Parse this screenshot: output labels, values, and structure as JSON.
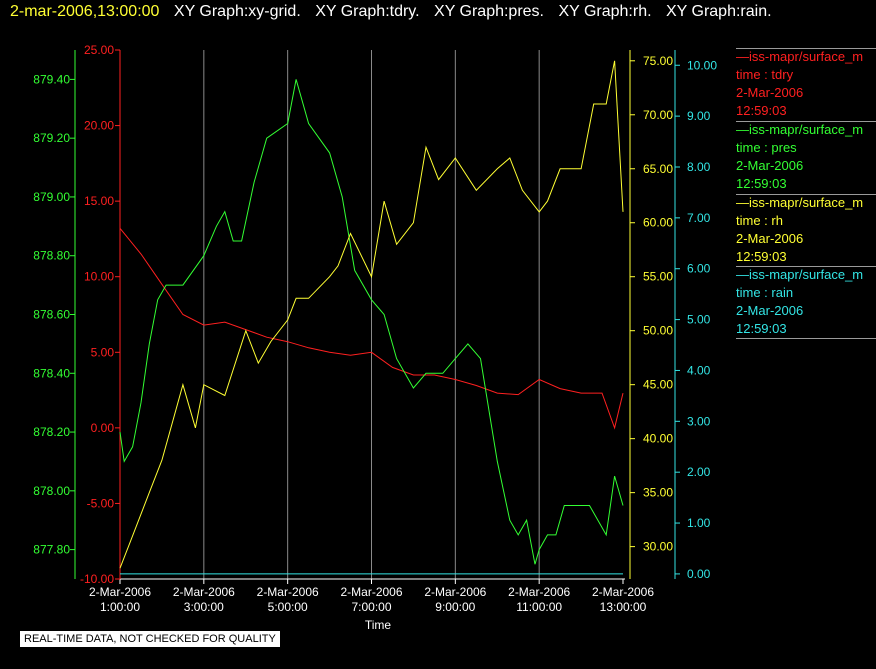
{
  "header": {
    "timestamp": "2-mar-2006,13:00:00",
    "graphs": [
      "XY Graph:xy-grid.",
      "XY Graph:tdry.",
      "XY Graph:pres.",
      "XY Graph:rh.",
      "XY Graph:rain."
    ]
  },
  "disclaimer": "REAL-TIME DATA, NOT CHECKED FOR QUALITY",
  "legend": [
    {
      "source": "—iss-mapr/surface_m",
      "variable": "time : tdry",
      "date": "2-Mar-2006",
      "time": "12:59:03",
      "color": "#ff2020"
    },
    {
      "source": "—iss-mapr/surface_m",
      "variable": "time : pres",
      "date": "2-Mar-2006",
      "time": "12:59:03",
      "color": "#33ff33"
    },
    {
      "source": "—iss-mapr/surface_m",
      "variable": "time : rh",
      "date": "2-Mar-2006",
      "time": "12:59:03",
      "color": "#ffff33"
    },
    {
      "source": "—iss-mapr/surface_m",
      "variable": "time : rain",
      "date": "2-Mar-2006",
      "time": "12:59:03",
      "color": "#33e5e5"
    }
  ],
  "chart_data": {
    "type": "line",
    "xlabel": "Time",
    "x_ticks": [
      {
        "date": "2-Mar-2006",
        "time": "1:00:00"
      },
      {
        "date": "2-Mar-2006",
        "time": "3:00:00"
      },
      {
        "date": "2-Mar-2006",
        "time": "5:00:00"
      },
      {
        "date": "2-Mar-2006",
        "time": "7:00:00"
      },
      {
        "date": "2-Mar-2006",
        "time": "9:00:00"
      },
      {
        "date": "2-Mar-2006",
        "time": "11:00:00"
      },
      {
        "date": "2-Mar-2006",
        "time": "13:00:00"
      }
    ],
    "xlim_hours": [
      1,
      13
    ],
    "grid": true,
    "axes": {
      "pres": {
        "color": "#33ff33",
        "range": [
          877.7,
          879.5
        ],
        "ticks": [
          "877.80",
          "878.00",
          "878.20",
          "878.40",
          "878.60",
          "878.80",
          "879.00",
          "879.20",
          "879.40"
        ]
      },
      "tdry": {
        "color": "#ff2020",
        "range": [
          -10,
          25
        ],
        "ticks": [
          "-10.00",
          "-5.00",
          "0.00",
          "5.00",
          "10.00",
          "15.00",
          "20.00",
          "25.00"
        ]
      },
      "rh": {
        "color": "#ffff33",
        "range": [
          27,
          76
        ],
        "ticks": [
          "30.00",
          "35.00",
          "40.00",
          "45.00",
          "50.00",
          "55.00",
          "60.00",
          "65.00",
          "70.00",
          "75.00"
        ]
      },
      "rain": {
        "color": "#33e5e5",
        "range": [
          -0.1,
          10.3
        ],
        "ticks": [
          "0.00",
          "1.00",
          "2.00",
          "3.00",
          "4.00",
          "5.00",
          "6.00",
          "7.00",
          "8.00",
          "9.00",
          "10.00"
        ]
      }
    },
    "series": [
      {
        "axis": "tdry",
        "x": [
          1.0,
          1.5,
          2.0,
          2.5,
          3.0,
          3.5,
          4.0,
          4.5,
          5.0,
          5.5,
          6.0,
          6.5,
          7.0,
          7.5,
          8.0,
          8.5,
          9.0,
          9.5,
          10.0,
          10.5,
          11.0,
          11.5,
          12.0,
          12.5,
          12.8,
          13.0
        ],
        "y": [
          13.2,
          11.5,
          9.5,
          7.5,
          6.8,
          7.0,
          6.5,
          6.0,
          5.7,
          5.3,
          5.0,
          4.8,
          5.0,
          4.0,
          3.5,
          3.5,
          3.2,
          2.8,
          2.3,
          2.2,
          3.2,
          2.6,
          2.3,
          2.3,
          0.0,
          2.3
        ]
      },
      {
        "axis": "pres",
        "x": [
          1.0,
          1.1,
          1.3,
          1.5,
          1.7,
          1.9,
          2.1,
          2.5,
          3.0,
          3.3,
          3.5,
          3.7,
          3.9,
          4.2,
          4.5,
          5.0,
          5.2,
          5.5,
          6.0,
          6.3,
          6.6,
          7.0,
          7.3,
          7.6,
          8.0,
          8.3,
          8.7,
          9.0,
          9.3,
          9.6,
          10.0,
          10.3,
          10.5,
          10.7,
          10.9,
          11.0,
          11.2,
          11.4,
          11.6,
          12.0,
          12.2,
          12.4,
          12.6,
          12.8,
          13.0
        ],
        "y": [
          878.2,
          878.1,
          878.15,
          878.3,
          878.5,
          878.65,
          878.7,
          878.7,
          878.8,
          878.9,
          878.95,
          878.85,
          878.85,
          879.05,
          879.2,
          879.25,
          879.4,
          879.25,
          879.15,
          879.0,
          878.75,
          878.65,
          878.6,
          878.45,
          878.35,
          878.4,
          878.4,
          878.45,
          878.5,
          878.45,
          878.1,
          877.9,
          877.85,
          877.9,
          877.75,
          877.8,
          877.85,
          877.85,
          877.95,
          877.95,
          877.95,
          877.9,
          877.85,
          878.05,
          877.95
        ]
      },
      {
        "axis": "rh",
        "x": [
          1.0,
          1.3,
          1.7,
          2.0,
          2.5,
          2.8,
          3.0,
          3.5,
          4.0,
          4.3,
          4.6,
          5.0,
          5.2,
          5.5,
          6.0,
          6.2,
          6.5,
          7.0,
          7.3,
          7.6,
          8.0,
          8.3,
          8.6,
          9.0,
          9.5,
          10.0,
          10.3,
          10.6,
          11.0,
          11.2,
          11.5,
          12.0,
          12.3,
          12.6,
          12.8,
          13.0
        ],
        "y": [
          28,
          31,
          35,
          38,
          45,
          41,
          45,
          44,
          50,
          47,
          49,
          51,
          53,
          53,
          55,
          56,
          59,
          55,
          62,
          58,
          60,
          67,
          64,
          66,
          63,
          65,
          66,
          63,
          61,
          62,
          65,
          65,
          71,
          71,
          75,
          61
        ]
      },
      {
        "axis": "rain",
        "x": [
          1.0,
          13.0
        ],
        "y": [
          0.0,
          0.0
        ]
      }
    ]
  }
}
